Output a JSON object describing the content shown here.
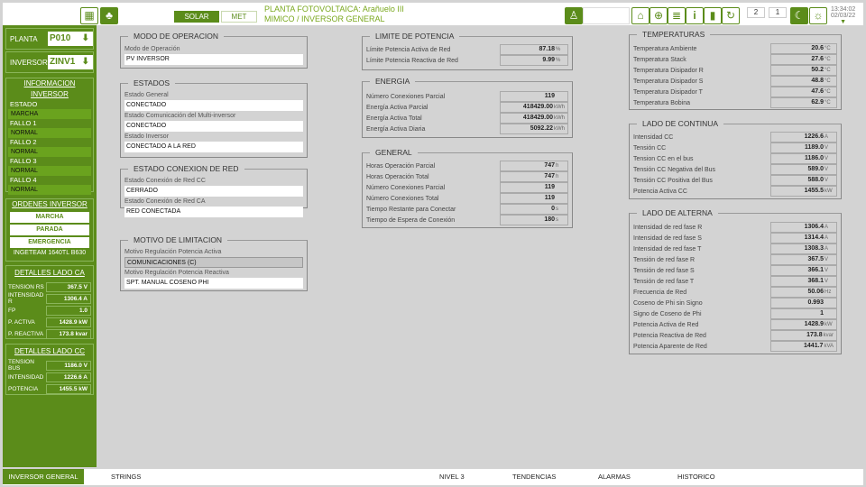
{
  "header": {
    "plant_label": "PLANTA FOTOVOLTAICA:",
    "plant_name": "Arañuelo III",
    "breadcrumb_root": "MIMICO /",
    "breadcrumb_page": "INVERSOR GENERAL",
    "tab_solar": "SOLAR",
    "tab_met": "MET",
    "screen_2": "2",
    "screen_1": "1",
    "time": "13:34:02",
    "date": "02/03/22"
  },
  "sidebar": {
    "planta_label": "PLANTA",
    "planta_value": "P010",
    "inversor_label": "INVERSOR",
    "inversor_value": "ZINV1",
    "info_title": "INFORMACION INVERSOR",
    "info": [
      {
        "label": "ESTADO",
        "value": "MARCHA"
      },
      {
        "label": "FALLO 1",
        "value": "NORMAL"
      },
      {
        "label": "FALLO 2",
        "value": "NORMAL"
      },
      {
        "label": "FALLO 3",
        "value": "NORMAL"
      },
      {
        "label": "FALLO 4",
        "value": "NORMAL"
      }
    ],
    "orders_title": "ORDENES INVERSOR",
    "orders": [
      "MARCHA",
      "PARADA",
      "EMERGENCIA"
    ],
    "model": "INGETEAM 1640TL B630",
    "ca_title": "DETALLES LADO CA",
    "ca": [
      {
        "label": "TENSION RS",
        "value": "367.5 V"
      },
      {
        "label": "INTENSIDAD R",
        "value": "1306.4 A"
      },
      {
        "label": "FP",
        "value": "1.0"
      },
      {
        "label": "P. ACTIVA",
        "value": "1428.9 kW"
      },
      {
        "label": "P. REACTIVA",
        "value": "173.8 kvar"
      }
    ],
    "cc_title": "DETALLES LADO CC",
    "cc": [
      {
        "label": "TENSION BUS",
        "value": "1186.0 V"
      },
      {
        "label": "INTENSIDAD",
        "value": "1226.6 A"
      },
      {
        "label": "POTENCIA",
        "value": "1455.5 kW"
      }
    ]
  },
  "modo": {
    "title": "MODO DE OPERACION",
    "fields": [
      {
        "label": "Modo de Operación",
        "value": "PV INVERSOR"
      }
    ]
  },
  "estados": {
    "title": "ESTADOS",
    "fields": [
      {
        "label": "Estado General",
        "value": "CONECTADO"
      },
      {
        "label": "Estado Comunicación del Multi-inversor",
        "value": "CONECTADO"
      },
      {
        "label": "Estado Inversor",
        "value": "CONECTADO A LA RED"
      }
    ]
  },
  "conexion": {
    "title": "ESTADO CONEXION DE RED",
    "fields": [
      {
        "label": "Estado Conexión de Red CC",
        "value": "CERRADO"
      },
      {
        "label": "Estado Conexión de Red CA",
        "value": "RED CONECTADA"
      }
    ]
  },
  "limitacion": {
    "title": "MOTIVO DE LIMITACION",
    "fields": [
      {
        "label": "Motivo Regulación Potencia Activa",
        "value": "COMUNICACIONES (C)"
      },
      {
        "label": "Motivo Regulación Potencia Reactiva",
        "value": "SPT. MANUAL COSENO PHI"
      }
    ]
  },
  "limite": {
    "title": "LIMITE DE POTENCIA",
    "rows": [
      {
        "label": "Límite Potencia Activa de Red",
        "value": "87.18",
        "unit": "%"
      },
      {
        "label": "Límite Potencia Reactiva de Red",
        "value": "9.99",
        "unit": "%"
      }
    ]
  },
  "energia": {
    "title": "ENERGIA",
    "rows": [
      {
        "label": "Número Conexiones Parcial",
        "value": "119",
        "unit": ""
      },
      {
        "label": "Energía Activa Parcial",
        "value": "418429.00",
        "unit": "kWh"
      },
      {
        "label": "Energía Activa Total",
        "value": "418429.00",
        "unit": "kWh"
      },
      {
        "label": "Energía Activa Diaria",
        "value": "5092.22",
        "unit": "kWh"
      }
    ]
  },
  "general": {
    "title": "GENERAL",
    "rows": [
      {
        "label": "Horas Operación Parcial",
        "value": "747",
        "unit": "h"
      },
      {
        "label": "Horas Operación Total",
        "value": "747",
        "unit": "h"
      },
      {
        "label": "Número Conexiones Parcial",
        "value": "119",
        "unit": ""
      },
      {
        "label": "Número Conexiones Total",
        "value": "119",
        "unit": ""
      },
      {
        "label": "Tiempo Restante para Conectar",
        "value": "0",
        "unit": "s"
      },
      {
        "label": "Tiempo de Espera de Conexión",
        "value": "180",
        "unit": "s"
      }
    ]
  },
  "temperaturas": {
    "title": "TEMPERATURAS",
    "rows": [
      {
        "label": "Temperatura Ambiente",
        "value": "20.6",
        "unit": "°C"
      },
      {
        "label": "Temperatura Stack",
        "value": "27.6",
        "unit": "°C"
      },
      {
        "label": "Temperatura Disipador R",
        "value": "50.2",
        "unit": "°C"
      },
      {
        "label": "Temperatura Disipador S",
        "value": "48.8",
        "unit": "°C"
      },
      {
        "label": "Temperatura Disipador T",
        "value": "47.6",
        "unit": "°C"
      },
      {
        "label": "Temperatura Bobina",
        "value": "62.9",
        "unit": "°C"
      }
    ]
  },
  "continua": {
    "title": "LADO DE CONTINUA",
    "rows": [
      {
        "label": "Intensidad CC",
        "value": "1226.6",
        "unit": "A"
      },
      {
        "label": "Tensión CC",
        "value": "1189.0",
        "unit": "V"
      },
      {
        "label": "Tension CC en el bus",
        "value": "1186.0",
        "unit": "V"
      },
      {
        "label": "Tensión CC Negativa del Bus",
        "value": "589.0",
        "unit": "V"
      },
      {
        "label": "Tensión CC Positiva del Bus",
        "value": "588.0",
        "unit": "V"
      },
      {
        "label": "Potencia Activa CC",
        "value": "1455.5",
        "unit": "kW"
      }
    ]
  },
  "alterna": {
    "title": "LADO DE ALTERNA",
    "rows": [
      {
        "label": "Intensidad de red fase R",
        "value": "1306.4",
        "unit": "A"
      },
      {
        "label": "Intensidad de red fase S",
        "value": "1314.4",
        "unit": "A"
      },
      {
        "label": "Intensidad de red fase T",
        "value": "1308.3",
        "unit": "A"
      },
      {
        "label": "Tensión de red fase R",
        "value": "367.5",
        "unit": "V"
      },
      {
        "label": "Tensión de red fase S",
        "value": "366.1",
        "unit": "V"
      },
      {
        "label": "Tensión de red fase T",
        "value": "368.1",
        "unit": "V"
      },
      {
        "label": "Frecuencia de Red",
        "value": "50.06",
        "unit": "Hz"
      },
      {
        "label": "Coseno de Phi sin Signo",
        "value": "0.993",
        "unit": ""
      },
      {
        "label": "Signo de Coseno de Phi",
        "value": "1",
        "unit": ""
      },
      {
        "label": "Potencia Activa de Red",
        "value": "1428.9",
        "unit": "kW"
      },
      {
        "label": "Potencia Reactiva de Red",
        "value": "173.8",
        "unit": "kvar"
      },
      {
        "label": "Potencia Aparente de Red",
        "value": "1441.7",
        "unit": "kVA"
      }
    ]
  },
  "bottom_nav": [
    "INVERSOR GENERAL",
    "STRINGS",
    "NIVEL 3",
    "TENDENCIAS",
    "ALARMAS",
    "HISTORICO"
  ],
  "colors": {
    "brand_green": "#5b8c1a",
    "field_green": "#6aa31e",
    "title_green": "#7aa81e"
  }
}
